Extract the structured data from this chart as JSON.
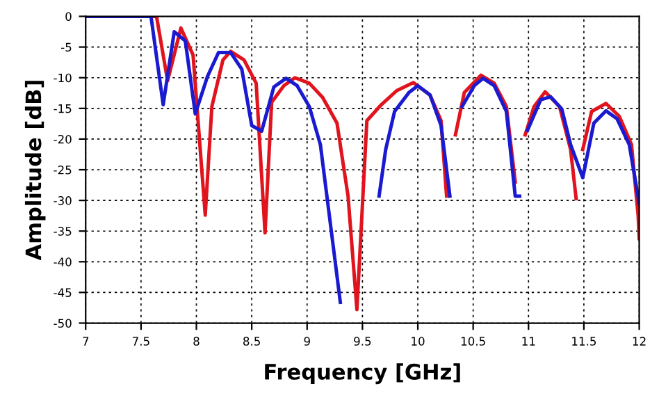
{
  "chart_data": {
    "type": "line",
    "xlabel": "Frequency [GHz]",
    "ylabel": "Amplitude [dB]",
    "xlim": [
      7,
      12
    ],
    "ylim": [
      -50,
      0
    ],
    "xticks": [
      7,
      7.5,
      8,
      8.5,
      9,
      9.5,
      10,
      10.5,
      11,
      11.5,
      12
    ],
    "yticks": [
      0,
      -5,
      -10,
      -15,
      -20,
      -25,
      -30,
      -35,
      -40,
      -45,
      -50
    ],
    "grid": true,
    "line_style": "solid",
    "series": [
      {
        "color": "#e0141e",
        "x": [
          7,
          7.3,
          7.64,
          7.74,
          7.86,
          7.97,
          8.08,
          8.14,
          8.24,
          8.31,
          8.43,
          8.54,
          8.62,
          8.68,
          8.79,
          8.89,
          9.02,
          9.14,
          9.27,
          9.37,
          9.45,
          9.54,
          9.67,
          9.81,
          9.96,
          10.11,
          10.21,
          10.26,
          10.3,
          10.34,
          10.42,
          10.57,
          10.69,
          10.8,
          10.88,
          10.92,
          10.97,
          11.05,
          11.15,
          11.28,
          11.38,
          11.43,
          11.46,
          11.49,
          11.57,
          11.7,
          11.82,
          11.93,
          11.99,
          12
        ],
        "values": [
          0,
          0,
          0,
          -10.5,
          -1.9,
          -6.3,
          -32.4,
          -14.7,
          -7.1,
          -5.7,
          -7.1,
          -10.9,
          -35.3,
          -14,
          -11.3,
          -10,
          -10.9,
          -13.2,
          -17.4,
          -29.3,
          -47.8,
          -17,
          -14.4,
          -12.1,
          -10.8,
          -12.8,
          -17,
          -29.3,
          null,
          -19.3,
          -12.4,
          -9.6,
          -10.9,
          -14.7,
          -27,
          null,
          -19.3,
          -14.7,
          -12.3,
          -14.7,
          -21.7,
          -29.7,
          null,
          -21.7,
          -15.5,
          -14.2,
          -16.3,
          -20.9,
          -32.4,
          -36.2
        ]
      },
      {
        "color": "#1a1ad0",
        "x": [
          7,
          7.3,
          7.59,
          7.7,
          7.8,
          7.9,
          7.99,
          8.1,
          8.2,
          8.31,
          8.41,
          8.5,
          8.59,
          8.7,
          8.81,
          8.91,
          9.02,
          9.12,
          9.3,
          9.5,
          9.65,
          9.71,
          9.79,
          9.92,
          10,
          10.11,
          10.21,
          10.29,
          10.35,
          10.4,
          10.51,
          10.59,
          10.69,
          10.8,
          10.88,
          10.92,
          10.96,
          10.99,
          11.11,
          11.2,
          11.3,
          11.38,
          11.49,
          11.59,
          11.7,
          11.8,
          11.91,
          12
        ],
        "values": [
          0,
          0,
          0,
          -14.4,
          -2.5,
          -4,
          -15.9,
          -9.8,
          -5.9,
          -5.9,
          -8.6,
          -17.8,
          -18.7,
          -11.5,
          -10.1,
          -11.3,
          -14.7,
          -20.9,
          -46.6,
          null,
          -29.3,
          -21.7,
          -15.5,
          -12.4,
          -11.3,
          -12.8,
          -17.8,
          -29.3,
          null,
          -14.7,
          -11.3,
          -10.1,
          -11.3,
          -15.5,
          -29.3,
          -29.3,
          null,
          -18.6,
          -13.6,
          -13.1,
          -15.1,
          -20.9,
          -26.3,
          -17.4,
          -15.4,
          -16.7,
          -20.9,
          -30.5
        ]
      }
    ]
  }
}
